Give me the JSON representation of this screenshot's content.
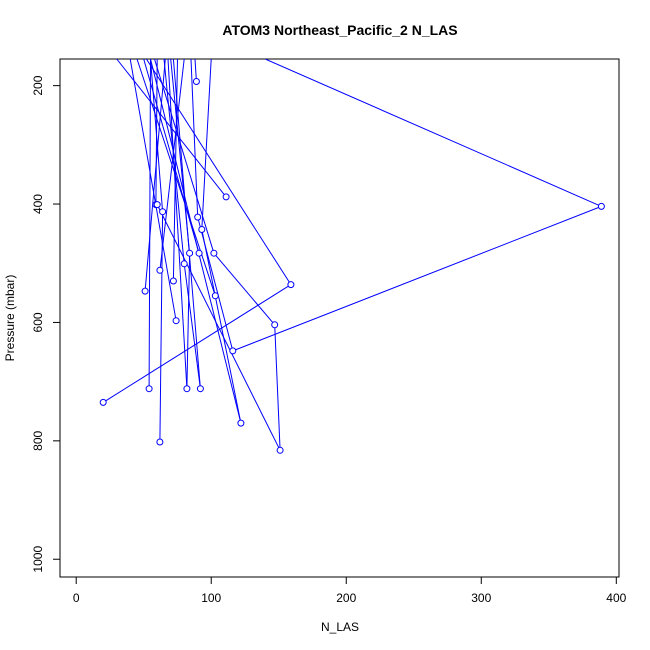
{
  "chart_data": {
    "type": "line",
    "title": "ATOM3 Northeast_Pacific_2 N_LAS",
    "xlabel": "N_LAS",
    "ylabel": "Pressure (mbar)",
    "xlim": [
      -12,
      402
    ],
    "ylim": [
      1030,
      155
    ],
    "y_reversed": true,
    "x_ticks": [
      0,
      100,
      200,
      300,
      400
    ],
    "y_ticks": [
      200,
      400,
      600,
      800,
      1000
    ],
    "series_color": "#0000ff",
    "marker": "open-circle",
    "grid": false,
    "series": [
      {
        "points": [
          [
            88,
            155
          ],
          [
            89,
            193
          ]
        ]
      },
      {
        "points": [
          [
            30,
            155
          ],
          [
            111,
            388
          ]
        ]
      },
      {
        "points": [
          [
            55,
            155
          ],
          [
            54,
            712
          ]
        ]
      },
      {
        "points": [
          [
            55,
            155
          ],
          [
            64,
            413
          ]
        ]
      },
      {
        "points": [
          [
            60,
            155
          ],
          [
            59,
            401
          ]
        ]
      },
      {
        "points": [
          [
            80,
            155
          ],
          [
            62,
            512
          ]
        ]
      },
      {
        "points": [
          [
            66,
            155
          ],
          [
            51,
            547
          ]
        ]
      },
      {
        "points": [
          [
            85,
            155
          ],
          [
            90,
            422
          ]
        ]
      },
      {
        "points": [
          [
            100,
            155
          ],
          [
            93,
            443
          ]
        ]
      },
      {
        "points": [
          [
            70,
            155
          ],
          [
            84,
            483
          ]
        ]
      },
      {
        "points": [
          [
            50,
            155
          ],
          [
            91,
            483
          ]
        ]
      },
      {
        "points": [
          [
            58,
            155
          ],
          [
            102,
            483
          ]
        ]
      },
      {
        "points": [
          [
            65,
            155
          ],
          [
            80,
            501
          ]
        ]
      },
      {
        "points": [
          [
            75,
            155
          ],
          [
            72,
            530
          ]
        ]
      },
      {
        "points": [
          [
            45,
            155
          ],
          [
            103,
            555
          ]
        ]
      },
      {
        "points": [
          [
            40,
            155
          ],
          [
            74,
            597
          ]
        ]
      },
      {
        "points": [
          [
            68,
            155
          ],
          [
            82,
            712
          ]
        ]
      },
      {
        "points": [
          [
            72,
            155
          ],
          [
            92,
            712
          ]
        ]
      },
      {
        "points": [
          [
            55,
            155
          ],
          [
            122,
            770
          ]
        ]
      },
      {
        "points": [
          [
            52,
            155
          ],
          [
            159,
            536
          ]
        ]
      },
      {
        "points": [
          [
            140,
            155
          ],
          [
            389,
            404
          ]
        ]
      },
      {
        "points": [
          [
            389,
            404
          ],
          [
            116,
            648
          ]
        ]
      },
      {
        "points": [
          [
            159,
            536
          ],
          [
            20,
            735
          ]
        ]
      },
      {
        "points": [
          [
            102,
            483
          ],
          [
            147,
            604
          ]
        ]
      },
      {
        "points": [
          [
            147,
            604
          ],
          [
            151,
            816
          ]
        ]
      },
      {
        "points": [
          [
            151,
            816
          ],
          [
            60,
            401
          ]
        ]
      },
      {
        "points": [
          [
            64,
            413
          ],
          [
            62,
            802
          ]
        ]
      },
      {
        "points": [
          [
            93,
            443
          ],
          [
            122,
            770
          ]
        ]
      },
      {
        "points": [
          [
            90,
            422
          ],
          [
            116,
            648
          ]
        ]
      },
      {
        "points": [
          [
            80,
            501
          ],
          [
            92,
            712
          ]
        ]
      },
      {
        "points": [
          [
            84,
            483
          ],
          [
            82,
            712
          ]
        ]
      }
    ]
  }
}
